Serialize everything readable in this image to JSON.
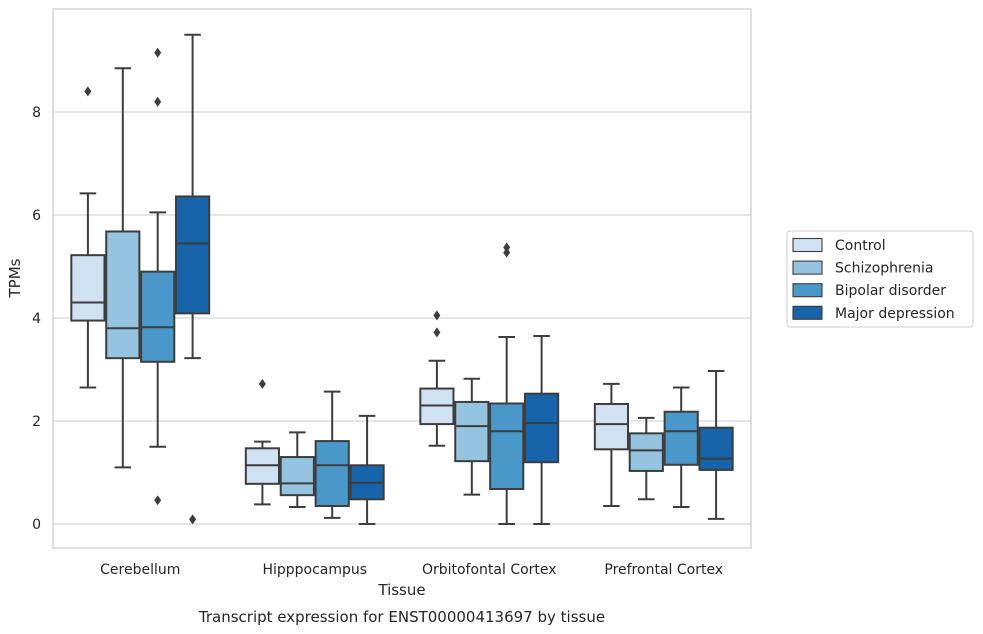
{
  "chart_data": {
    "type": "boxplot",
    "title": "",
    "caption": "Transcript expression for ENST00000413697 by tissue",
    "xlabel": "Tissue",
    "ylabel": "TPMs",
    "ylim": [
      -0.45,
      10.0
    ],
    "yticks": [
      0,
      2,
      4,
      6,
      8
    ],
    "grid": "horizontal",
    "legend_position": "right",
    "categories": [
      "Cerebellum",
      "Hipppocampus",
      "Orbitofontal Cortex",
      "Prefrontal Cortex"
    ],
    "series": [
      {
        "name": "Control",
        "color": "#d0e1f2",
        "boxes": [
          {
            "whislo": 2.65,
            "q1": 3.95,
            "med": 4.3,
            "q3": 5.22,
            "whishi": 6.42,
            "fliers": [
              8.4
            ]
          },
          {
            "whislo": 0.38,
            "q1": 0.78,
            "med": 1.14,
            "q3": 1.47,
            "whishi": 1.6,
            "fliers": [
              2.72
            ]
          },
          {
            "whislo": 1.52,
            "q1": 1.94,
            "med": 2.3,
            "q3": 2.63,
            "whishi": 3.17,
            "fliers": [
              3.72,
              4.05
            ]
          },
          {
            "whislo": 0.35,
            "q1": 1.45,
            "med": 1.94,
            "q3": 2.33,
            "whishi": 2.72,
            "fliers": []
          }
        ]
      },
      {
        "name": "Schizophrenia",
        "color": "#94c4df",
        "boxes": [
          {
            "whislo": 1.1,
            "q1": 3.22,
            "med": 3.8,
            "q3": 5.68,
            "whishi": 8.85,
            "fliers": []
          },
          {
            "whislo": 0.33,
            "q1": 0.56,
            "med": 0.79,
            "q3": 1.3,
            "whishi": 1.78,
            "fliers": []
          },
          {
            "whislo": 0.57,
            "q1": 1.22,
            "med": 1.9,
            "q3": 2.37,
            "whishi": 2.82,
            "fliers": []
          },
          {
            "whislo": 0.48,
            "q1": 1.03,
            "med": 1.43,
            "q3": 1.76,
            "whishi": 2.06,
            "fliers": []
          }
        ]
      },
      {
        "name": "Bipolar disorder",
        "color": "#4a98c9",
        "boxes": [
          {
            "whislo": 1.5,
            "q1": 3.15,
            "med": 3.82,
            "q3": 4.9,
            "whishi": 6.05,
            "fliers": [
              0.46,
              8.2,
              9.15
            ]
          },
          {
            "whislo": 0.12,
            "q1": 0.35,
            "med": 1.14,
            "q3": 1.61,
            "whishi": 2.57,
            "fliers": []
          },
          {
            "whislo": 0.0,
            "q1": 0.68,
            "med": 1.8,
            "q3": 2.34,
            "whishi": 3.63,
            "fliers": [
              5.27,
              5.37
            ]
          },
          {
            "whislo": 0.33,
            "q1": 1.15,
            "med": 1.8,
            "q3": 2.18,
            "whishi": 2.65,
            "fliers": []
          }
        ]
      },
      {
        "name": "Major depression",
        "color": "#1764ab",
        "boxes": [
          {
            "whislo": 3.22,
            "q1": 4.09,
            "med": 5.45,
            "q3": 6.36,
            "whishi": 9.5,
            "fliers": [
              0.09
            ]
          },
          {
            "whislo": 0.0,
            "q1": 0.48,
            "med": 0.8,
            "q3": 1.14,
            "whishi": 2.1,
            "fliers": []
          },
          {
            "whislo": 0.0,
            "q1": 1.2,
            "med": 1.96,
            "q3": 2.53,
            "whishi": 3.65,
            "fliers": []
          },
          {
            "whislo": 0.1,
            "q1": 1.05,
            "med": 1.27,
            "q3": 1.87,
            "whishi": 2.97,
            "fliers": []
          }
        ]
      }
    ]
  }
}
